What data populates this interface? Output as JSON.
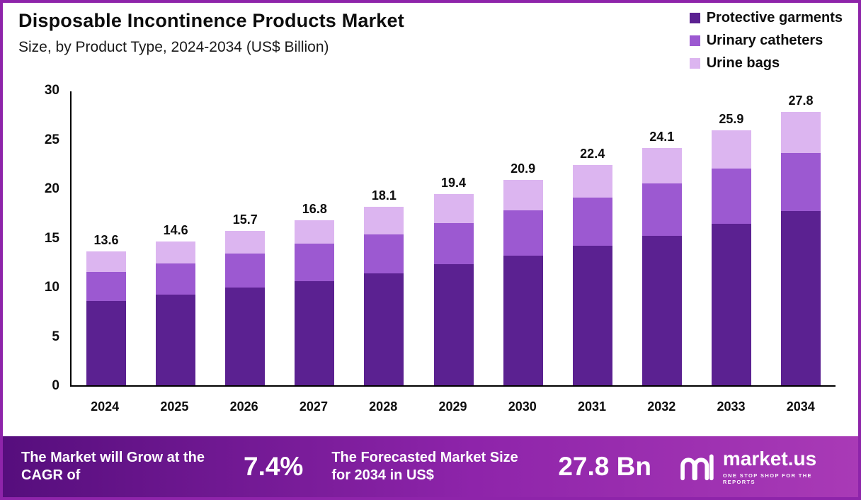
{
  "header": {
    "title": "Disposable Incontinence Products Market",
    "subtitle": "Size, by Product Type, 2024-2034 (US$ Billion)"
  },
  "legend": [
    {
      "label": "Protective garments",
      "color": "#5b2191"
    },
    {
      "label": "Urinary catheters",
      "color": "#9c59d1"
    },
    {
      "label": "Urine bags",
      "color": "#dcb5f0"
    }
  ],
  "chart_data": {
    "type": "bar",
    "stacked": true,
    "title": "Disposable Incontinence Products Market Size, by Product Type, 2024-2034 (US$ Billion)",
    "categories": [
      "2024",
      "2025",
      "2026",
      "2027",
      "2028",
      "2029",
      "2030",
      "2031",
      "2032",
      "2033",
      "2034"
    ],
    "series": [
      {
        "name": "Protective garments",
        "color": "#5b2191",
        "values": [
          8.6,
          9.2,
          9.9,
          10.6,
          11.4,
          12.3,
          13.2,
          14.2,
          15.2,
          16.4,
          17.7
        ]
      },
      {
        "name": "Urinary catheters",
        "color": "#9c59d1",
        "values": [
          2.9,
          3.2,
          3.5,
          3.8,
          3.9,
          4.2,
          4.6,
          4.9,
          5.3,
          5.6,
          5.9
        ]
      },
      {
        "name": "Urine bags",
        "color": "#dcb5f0",
        "values": [
          2.1,
          2.2,
          2.3,
          2.4,
          2.8,
          2.9,
          3.1,
          3.3,
          3.6,
          3.9,
          4.2
        ]
      }
    ],
    "totals": [
      "13.6",
      "14.6",
      "15.7",
      "16.8",
      "18.1",
      "19.4",
      "20.9",
      "22.4",
      "24.1",
      "25.9",
      "27.8"
    ],
    "ylim": [
      0,
      30
    ],
    "yticks": [
      0,
      5,
      10,
      15,
      20,
      25,
      30
    ],
    "xlabel": "",
    "ylabel": "",
    "grid": false,
    "legend_position": "top-right"
  },
  "footer": {
    "cagr_label": "The Market will Grow at the CAGR of",
    "cagr_value": "7.4%",
    "forecast_label": "The Forecasted Market Size for 2034 in US$",
    "forecast_value": "27.8 Bn",
    "brand": "market.us",
    "tagline": "ONE STOP SHOP FOR THE REPORTS"
  },
  "colors": {
    "border": "#8e24aa",
    "footer_gradient_start": "#560e7d",
    "footer_gradient_end": "#a93ab6",
    "axis": "#000000",
    "text": "#0d0d0d"
  }
}
